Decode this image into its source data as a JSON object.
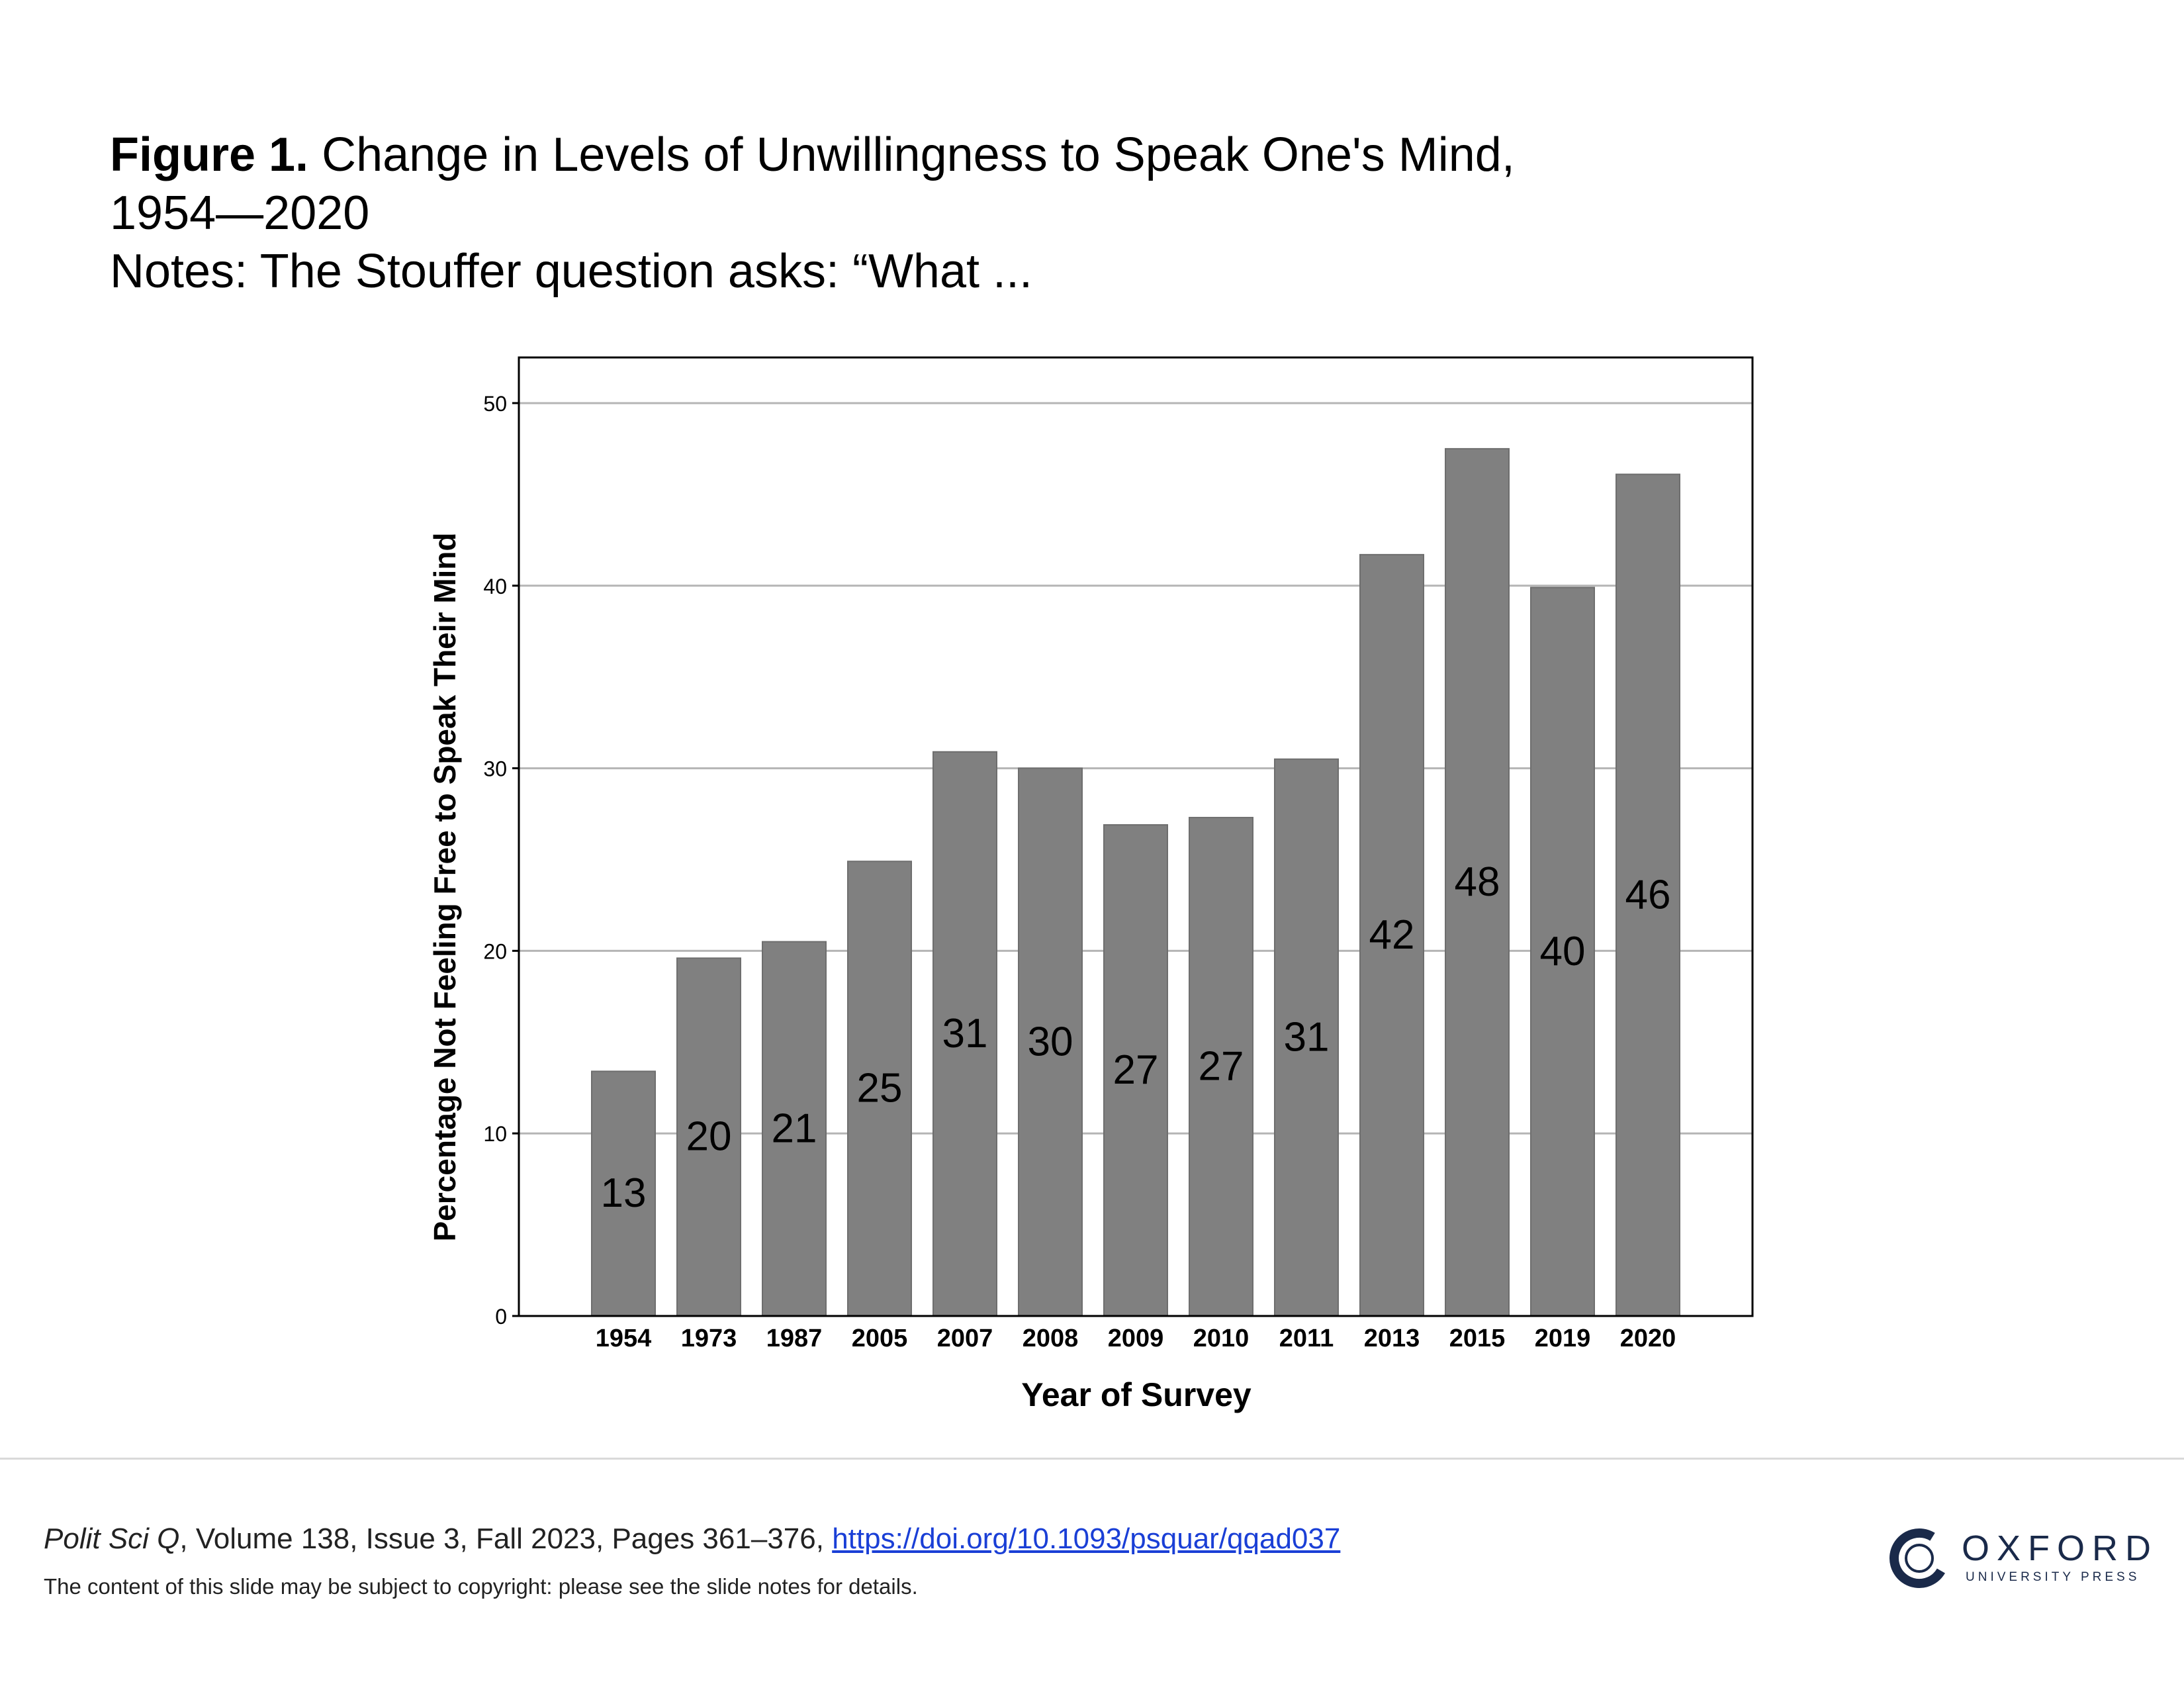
{
  "caption": {
    "figure_label": "Figure 1.",
    "title_line1": "Change in Levels of Unwillingness to Speak One's Mind,",
    "title_line2": "1954—2020",
    "notes": "Notes: The Stouffer question asks: “What ..."
  },
  "chart_data": {
    "type": "bar",
    "xlabel": "Year of Survey",
    "ylabel": "Percentage Not Feeling Free to Speak Their Mind",
    "ylim": [
      0,
      52.5
    ],
    "yticks": [
      0,
      10,
      20,
      30,
      40,
      50
    ],
    "grid": true,
    "bar_color": "#808080",
    "categories": [
      "1954",
      "1973",
      "1987",
      "2005",
      "2007",
      "2008",
      "2009",
      "2010",
      "2011",
      "2013",
      "2015",
      "2019",
      "2020"
    ],
    "values": [
      13.4,
      19.6,
      20.5,
      24.9,
      30.9,
      30.0,
      26.9,
      27.3,
      30.5,
      41.7,
      47.5,
      39.9,
      46.1
    ],
    "data_labels": [
      "13",
      "20",
      "21",
      "25",
      "31",
      "30",
      "27",
      "27",
      "31",
      "42",
      "48",
      "40",
      "46"
    ]
  },
  "footer": {
    "journal": "Polit Sci Q",
    "citation_rest": ", Volume 138, Issue 3, Fall 2023, Pages 361–376, ",
    "doi_link": "https://doi.org/10.1093/psquar/qqad037",
    "copyright_note": "The content of this slide may be subject to copyright: please see the slide notes for details.",
    "publisher_wordmark": "OXFORD",
    "publisher_sub": "UNIVERSITY PRESS"
  }
}
